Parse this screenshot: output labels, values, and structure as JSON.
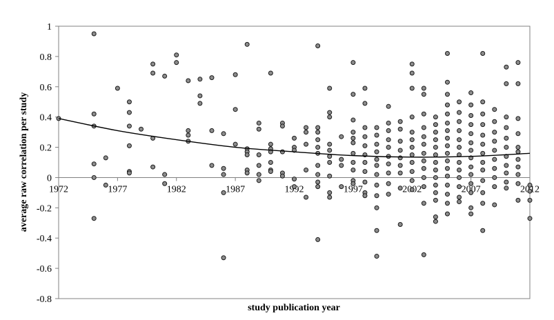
{
  "chart_data": {
    "type": "scatter",
    "title": "",
    "xlabel": "study publication year",
    "ylabel": "average raw correlation  per study",
    "xlim": [
      1972,
      2012
    ],
    "ylim": [
      -0.8,
      1
    ],
    "x_ticks": [
      "1972",
      "1977",
      "1982",
      "1987",
      "1992",
      "1997",
      "2002",
      "2007",
      "2012"
    ],
    "y_ticks": [
      "1",
      "0.8",
      "0.6",
      "0.4",
      "0.2",
      "0",
      "-0.2",
      "-0.4",
      "-0.6",
      "-0.8"
    ],
    "grid": false,
    "marker_color": "#8c8c8c",
    "trend_color": "#000000",
    "trendline": {
      "type": "polynomial",
      "x": [
        1972,
        1977,
        1982,
        1987,
        1992,
        1997,
        2002,
        2007,
        2012
      ],
      "y": [
        0.39,
        0.31,
        0.25,
        0.2,
        0.17,
        0.145,
        0.135,
        0.14,
        0.16
      ]
    },
    "points": [
      {
        "x": 1972,
        "y": 0.39
      },
      {
        "x": 1975,
        "y": 0.95
      },
      {
        "x": 1975,
        "y": 0.42
      },
      {
        "x": 1975,
        "y": 0.34
      },
      {
        "x": 1975,
        "y": 0.09
      },
      {
        "x": 1975,
        "y": 0.0
      },
      {
        "x": 1975,
        "y": -0.27
      },
      {
        "x": 1976,
        "y": 0.13
      },
      {
        "x": 1976,
        "y": -0.05
      },
      {
        "x": 1977,
        "y": 0.59
      },
      {
        "x": 1978,
        "y": 0.5
      },
      {
        "x": 1978,
        "y": 0.43
      },
      {
        "x": 1978,
        "y": 0.34
      },
      {
        "x": 1978,
        "y": 0.21
      },
      {
        "x": 1978,
        "y": 0.04
      },
      {
        "x": 1978,
        "y": 0.03
      },
      {
        "x": 1979,
        "y": 0.32
      },
      {
        "x": 1980,
        "y": 0.75
      },
      {
        "x": 1980,
        "y": 0.69
      },
      {
        "x": 1980,
        "y": 0.26
      },
      {
        "x": 1980,
        "y": 0.07
      },
      {
        "x": 1981,
        "y": 0.67
      },
      {
        "x": 1981,
        "y": 0.02
      },
      {
        "x": 1981,
        "y": -0.04
      },
      {
        "x": 1982,
        "y": 0.81
      },
      {
        "x": 1982,
        "y": 0.76
      },
      {
        "x": 1983,
        "y": 0.64
      },
      {
        "x": 1983,
        "y": 0.31
      },
      {
        "x": 1983,
        "y": 0.28
      },
      {
        "x": 1983,
        "y": 0.24
      },
      {
        "x": 1984,
        "y": 0.65
      },
      {
        "x": 1984,
        "y": 0.54
      },
      {
        "x": 1984,
        "y": 0.49
      },
      {
        "x": 1985,
        "y": 0.66
      },
      {
        "x": 1985,
        "y": 0.31
      },
      {
        "x": 1985,
        "y": 0.08
      },
      {
        "x": 1986,
        "y": 0.29
      },
      {
        "x": 1986,
        "y": 0.06
      },
      {
        "x": 1986,
        "y": 0.02
      },
      {
        "x": 1986,
        "y": -0.1
      },
      {
        "x": 1986,
        "y": -0.53
      },
      {
        "x": 1987,
        "y": 0.68
      },
      {
        "x": 1987,
        "y": 0.45
      },
      {
        "x": 1987,
        "y": 0.22
      },
      {
        "x": 1988,
        "y": 0.88
      },
      {
        "x": 1988,
        "y": 0.19
      },
      {
        "x": 1988,
        "y": 0.17
      },
      {
        "x": 1988,
        "y": 0.15
      },
      {
        "x": 1988,
        "y": 0.05
      },
      {
        "x": 1988,
        "y": 0.03
      },
      {
        "x": 1989,
        "y": 0.36
      },
      {
        "x": 1989,
        "y": 0.32
      },
      {
        "x": 1989,
        "y": 0.15
      },
      {
        "x": 1989,
        "y": 0.08
      },
      {
        "x": 1989,
        "y": 0.02
      },
      {
        "x": 1989,
        "y": -0.02
      },
      {
        "x": 1990,
        "y": 0.69
      },
      {
        "x": 1990,
        "y": 0.22
      },
      {
        "x": 1990,
        "y": 0.19
      },
      {
        "x": 1990,
        "y": 0.17
      },
      {
        "x": 1990,
        "y": 0.1
      },
      {
        "x": 1990,
        "y": 0.05
      },
      {
        "x": 1990,
        "y": 0.04
      },
      {
        "x": 1991,
        "y": 0.36
      },
      {
        "x": 1991,
        "y": 0.34
      },
      {
        "x": 1991,
        "y": 0.17
      },
      {
        "x": 1991,
        "y": 0.03
      },
      {
        "x": 1991,
        "y": 0.01
      },
      {
        "x": 1992,
        "y": 0.26
      },
      {
        "x": 1992,
        "y": 0.2
      },
      {
        "x": 1992,
        "y": 0.18
      },
      {
        "x": 1992,
        "y": -0.01
      },
      {
        "x": 1992,
        "y": -0.06
      },
      {
        "x": 1993,
        "y": 0.33
      },
      {
        "x": 1993,
        "y": 0.3
      },
      {
        "x": 1993,
        "y": 0.22
      },
      {
        "x": 1993,
        "y": 0.05
      },
      {
        "x": 1993,
        "y": -0.13
      },
      {
        "x": 1994,
        "y": 0.87
      },
      {
        "x": 1994,
        "y": 0.33
      },
      {
        "x": 1994,
        "y": 0.3
      },
      {
        "x": 1994,
        "y": 0.25
      },
      {
        "x": 1994,
        "y": 0.2
      },
      {
        "x": 1994,
        "y": 0.16
      },
      {
        "x": 1994,
        "y": 0.08
      },
      {
        "x": 1994,
        "y": 0.02
      },
      {
        "x": 1994,
        "y": -0.03
      },
      {
        "x": 1994,
        "y": -0.06
      },
      {
        "x": 1994,
        "y": -0.41
      },
      {
        "x": 1995,
        "y": 0.59
      },
      {
        "x": 1995,
        "y": 0.43
      },
      {
        "x": 1995,
        "y": 0.4
      },
      {
        "x": 1995,
        "y": 0.22
      },
      {
        "x": 1995,
        "y": 0.18
      },
      {
        "x": 1995,
        "y": 0.14
      },
      {
        "x": 1995,
        "y": 0.1
      },
      {
        "x": 1995,
        "y": 0.01
      },
      {
        "x": 1995,
        "y": -0.1
      },
      {
        "x": 1995,
        "y": -0.13
      },
      {
        "x": 1996,
        "y": 0.27
      },
      {
        "x": 1996,
        "y": 0.12
      },
      {
        "x": 1996,
        "y": 0.08
      },
      {
        "x": 1996,
        "y": -0.06
      },
      {
        "x": 1997,
        "y": 0.76
      },
      {
        "x": 1997,
        "y": 0.55
      },
      {
        "x": 1997,
        "y": 0.38
      },
      {
        "x": 1997,
        "y": 0.3
      },
      {
        "x": 1997,
        "y": 0.26
      },
      {
        "x": 1997,
        "y": 0.23
      },
      {
        "x": 1997,
        "y": 0.16
      },
      {
        "x": 1997,
        "y": 0.1
      },
      {
        "x": 1997,
        "y": 0.05
      },
      {
        "x": 1997,
        "y": -0.02
      },
      {
        "x": 1997,
        "y": -0.04
      },
      {
        "x": 1998,
        "y": 0.59
      },
      {
        "x": 1998,
        "y": 0.49
      },
      {
        "x": 1998,
        "y": 0.33
      },
      {
        "x": 1998,
        "y": 0.27
      },
      {
        "x": 1998,
        "y": 0.21
      },
      {
        "x": 1998,
        "y": 0.15
      },
      {
        "x": 1998,
        "y": 0.1
      },
      {
        "x": 1998,
        "y": 0.04
      },
      {
        "x": 1998,
        "y": -0.03
      },
      {
        "x": 1998,
        "y": -0.1
      },
      {
        "x": 1998,
        "y": -0.12
      },
      {
        "x": 1999,
        "y": 0.33
      },
      {
        "x": 1999,
        "y": 0.28
      },
      {
        "x": 1999,
        "y": 0.22
      },
      {
        "x": 1999,
        "y": 0.17
      },
      {
        "x": 1999,
        "y": 0.12
      },
      {
        "x": 1999,
        "y": 0.08
      },
      {
        "x": 1999,
        "y": 0.02
      },
      {
        "x": 1999,
        "y": -0.05
      },
      {
        "x": 1999,
        "y": -0.12
      },
      {
        "x": 1999,
        "y": -0.2
      },
      {
        "x": 1999,
        "y": -0.35
      },
      {
        "x": 1999,
        "y": -0.52
      },
      {
        "x": 2000,
        "y": 0.47
      },
      {
        "x": 2000,
        "y": 0.36
      },
      {
        "x": 2000,
        "y": 0.31
      },
      {
        "x": 2000,
        "y": 0.25
      },
      {
        "x": 2000,
        "y": 0.2
      },
      {
        "x": 2000,
        "y": 0.14
      },
      {
        "x": 2000,
        "y": 0.09
      },
      {
        "x": 2000,
        "y": 0.03
      },
      {
        "x": 2000,
        "y": -0.04
      },
      {
        "x": 2000,
        "y": -0.11
      },
      {
        "x": 2001,
        "y": 0.37
      },
      {
        "x": 2001,
        "y": 0.32
      },
      {
        "x": 2001,
        "y": 0.24
      },
      {
        "x": 2001,
        "y": 0.18
      },
      {
        "x": 2001,
        "y": 0.13
      },
      {
        "x": 2001,
        "y": 0.08
      },
      {
        "x": 2001,
        "y": 0.03
      },
      {
        "x": 2001,
        "y": -0.07
      },
      {
        "x": 2001,
        "y": -0.31
      },
      {
        "x": 2002,
        "y": 0.75
      },
      {
        "x": 2002,
        "y": 0.69
      },
      {
        "x": 2002,
        "y": 0.59
      },
      {
        "x": 2002,
        "y": 0.4
      },
      {
        "x": 2002,
        "y": 0.3
      },
      {
        "x": 2002,
        "y": 0.25
      },
      {
        "x": 2002,
        "y": 0.2
      },
      {
        "x": 2002,
        "y": 0.15
      },
      {
        "x": 2002,
        "y": 0.1
      },
      {
        "x": 2002,
        "y": 0.04
      },
      {
        "x": 2002,
        "y": -0.02
      },
      {
        "x": 2002,
        "y": -0.08
      },
      {
        "x": 2003,
        "y": 0.59
      },
      {
        "x": 2003,
        "y": 0.55
      },
      {
        "x": 2003,
        "y": 0.42
      },
      {
        "x": 2003,
        "y": 0.33
      },
      {
        "x": 2003,
        "y": 0.27
      },
      {
        "x": 2003,
        "y": 0.22
      },
      {
        "x": 2003,
        "y": 0.16
      },
      {
        "x": 2003,
        "y": 0.11
      },
      {
        "x": 2003,
        "y": 0.06
      },
      {
        "x": 2003,
        "y": 0.0
      },
      {
        "x": 2003,
        "y": -0.06
      },
      {
        "x": 2003,
        "y": -0.17
      },
      {
        "x": 2003,
        "y": -0.51
      },
      {
        "x": 2004,
        "y": 0.4
      },
      {
        "x": 2004,
        "y": 0.35
      },
      {
        "x": 2004,
        "y": 0.3
      },
      {
        "x": 2004,
        "y": 0.25
      },
      {
        "x": 2004,
        "y": 0.2
      },
      {
        "x": 2004,
        "y": 0.15
      },
      {
        "x": 2004,
        "y": 0.1
      },
      {
        "x": 2004,
        "y": 0.05
      },
      {
        "x": 2004,
        "y": 0.0
      },
      {
        "x": 2004,
        "y": -0.05
      },
      {
        "x": 2004,
        "y": -0.1
      },
      {
        "x": 2004,
        "y": -0.15
      },
      {
        "x": 2004,
        "y": -0.26
      },
      {
        "x": 2004,
        "y": -0.29
      },
      {
        "x": 2005,
        "y": 0.82
      },
      {
        "x": 2005,
        "y": 0.63
      },
      {
        "x": 2005,
        "y": 0.55
      },
      {
        "x": 2005,
        "y": 0.48
      },
      {
        "x": 2005,
        "y": 0.42
      },
      {
        "x": 2005,
        "y": 0.36
      },
      {
        "x": 2005,
        "y": 0.31
      },
      {
        "x": 2005,
        "y": 0.26
      },
      {
        "x": 2005,
        "y": 0.21
      },
      {
        "x": 2005,
        "y": 0.16
      },
      {
        "x": 2005,
        "y": 0.11
      },
      {
        "x": 2005,
        "y": 0.06
      },
      {
        "x": 2005,
        "y": 0.01
      },
      {
        "x": 2005,
        "y": -0.05
      },
      {
        "x": 2005,
        "y": -0.11
      },
      {
        "x": 2005,
        "y": -0.17
      },
      {
        "x": 2005,
        "y": -0.24
      },
      {
        "x": 2006,
        "y": 0.5
      },
      {
        "x": 2006,
        "y": 0.43
      },
      {
        "x": 2006,
        "y": 0.37
      },
      {
        "x": 2006,
        "y": 0.31
      },
      {
        "x": 2006,
        "y": 0.25
      },
      {
        "x": 2006,
        "y": 0.2
      },
      {
        "x": 2006,
        "y": 0.15
      },
      {
        "x": 2006,
        "y": 0.1
      },
      {
        "x": 2006,
        "y": 0.05
      },
      {
        "x": 2006,
        "y": 0.0
      },
      {
        "x": 2006,
        "y": -0.06
      },
      {
        "x": 2006,
        "y": -0.13
      },
      {
        "x": 2006,
        "y": -0.16
      },
      {
        "x": 2007,
        "y": 0.56
      },
      {
        "x": 2007,
        "y": 0.48
      },
      {
        "x": 2007,
        "y": 0.41
      },
      {
        "x": 2007,
        "y": 0.35
      },
      {
        "x": 2007,
        "y": 0.29
      },
      {
        "x": 2007,
        "y": 0.23
      },
      {
        "x": 2007,
        "y": 0.18
      },
      {
        "x": 2007,
        "y": 0.13
      },
      {
        "x": 2007,
        "y": 0.07
      },
      {
        "x": 2007,
        "y": 0.02
      },
      {
        "x": 2007,
        "y": -0.04
      },
      {
        "x": 2007,
        "y": -0.1
      },
      {
        "x": 2007,
        "y": -0.2
      },
      {
        "x": 2007,
        "y": -0.24
      },
      {
        "x": 2008,
        "y": 0.82
      },
      {
        "x": 2008,
        "y": 0.5
      },
      {
        "x": 2008,
        "y": 0.42
      },
      {
        "x": 2008,
        "y": 0.35
      },
      {
        "x": 2008,
        "y": 0.28
      },
      {
        "x": 2008,
        "y": 0.22
      },
      {
        "x": 2008,
        "y": 0.16
      },
      {
        "x": 2008,
        "y": 0.1
      },
      {
        "x": 2008,
        "y": 0.05
      },
      {
        "x": 2008,
        "y": -0.02
      },
      {
        "x": 2008,
        "y": -0.1
      },
      {
        "x": 2008,
        "y": -0.17
      },
      {
        "x": 2008,
        "y": -0.35
      },
      {
        "x": 2009,
        "y": 0.45
      },
      {
        "x": 2009,
        "y": 0.37
      },
      {
        "x": 2009,
        "y": 0.3
      },
      {
        "x": 2009,
        "y": 0.24
      },
      {
        "x": 2009,
        "y": 0.18
      },
      {
        "x": 2009,
        "y": 0.12
      },
      {
        "x": 2009,
        "y": 0.06
      },
      {
        "x": 2009,
        "y": 0.0
      },
      {
        "x": 2009,
        "y": -0.06
      },
      {
        "x": 2009,
        "y": -0.18
      },
      {
        "x": 2010,
        "y": 0.73
      },
      {
        "x": 2010,
        "y": 0.62
      },
      {
        "x": 2010,
        "y": 0.4
      },
      {
        "x": 2010,
        "y": 0.33
      },
      {
        "x": 2010,
        "y": 0.26
      },
      {
        "x": 2010,
        "y": 0.2
      },
      {
        "x": 2010,
        "y": 0.14
      },
      {
        "x": 2010,
        "y": 0.08
      },
      {
        "x": 2010,
        "y": 0.03
      },
      {
        "x": 2010,
        "y": -0.03
      },
      {
        "x": 2010,
        "y": -0.07
      },
      {
        "x": 2011,
        "y": 0.76
      },
      {
        "x": 2011,
        "y": 0.62
      },
      {
        "x": 2011,
        "y": 0.39
      },
      {
        "x": 2011,
        "y": 0.29
      },
      {
        "x": 2011,
        "y": 0.2
      },
      {
        "x": 2011,
        "y": 0.17
      },
      {
        "x": 2011,
        "y": 0.12
      },
      {
        "x": 2011,
        "y": 0.07
      },
      {
        "x": 2011,
        "y": 0.02
      },
      {
        "x": 2011,
        "y": -0.04
      },
      {
        "x": 2011,
        "y": -0.15
      },
      {
        "x": 2012,
        "y": -0.05
      },
      {
        "x": 2012,
        "y": -0.09
      },
      {
        "x": 2012,
        "y": -0.15
      },
      {
        "x": 2012,
        "y": -0.27
      }
    ]
  }
}
